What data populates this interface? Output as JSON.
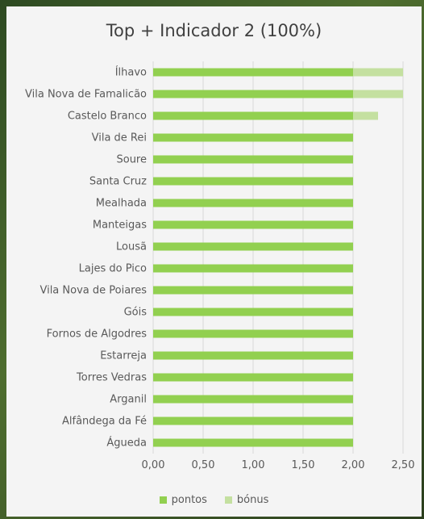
{
  "chart_data": {
    "type": "bar",
    "orientation": "horizontal",
    "stacked": true,
    "title": "Top + Indicador 2 (100%)",
    "categories": [
      "Ílhavo",
      "Vila Nova de Famalicão",
      "Castelo Branco",
      "Vila de Rei",
      "Soure",
      "Santa Cruz",
      "Mealhada",
      "Manteigas",
      "Lousã",
      "Lajes do Pico",
      "Vila Nova de Poiares",
      "Góis",
      "Fornos de Algodres",
      "Estarreja",
      "Torres Vedras",
      "Arganil",
      "Alfândega da Fé",
      "Águeda"
    ],
    "series": [
      {
        "name": "pontos",
        "color": "#92d050",
        "values": [
          2,
          2,
          2,
          2,
          2,
          2,
          2,
          2,
          2,
          2,
          2,
          2,
          2,
          2,
          2,
          2,
          2,
          2
        ]
      },
      {
        "name": "bónus",
        "color": "#c4e0a0",
        "values": [
          0.5,
          0.5,
          0.25,
          0,
          0,
          0,
          0,
          0,
          0,
          0,
          0,
          0,
          0,
          0,
          0,
          0,
          0,
          0
        ]
      }
    ],
    "xlim": [
      0,
      2.5
    ],
    "xticks": [
      "0,00",
      "0,50",
      "1,00",
      "1,50",
      "2,00",
      "2,50"
    ],
    "grid": true,
    "legend_position": "bottom"
  }
}
